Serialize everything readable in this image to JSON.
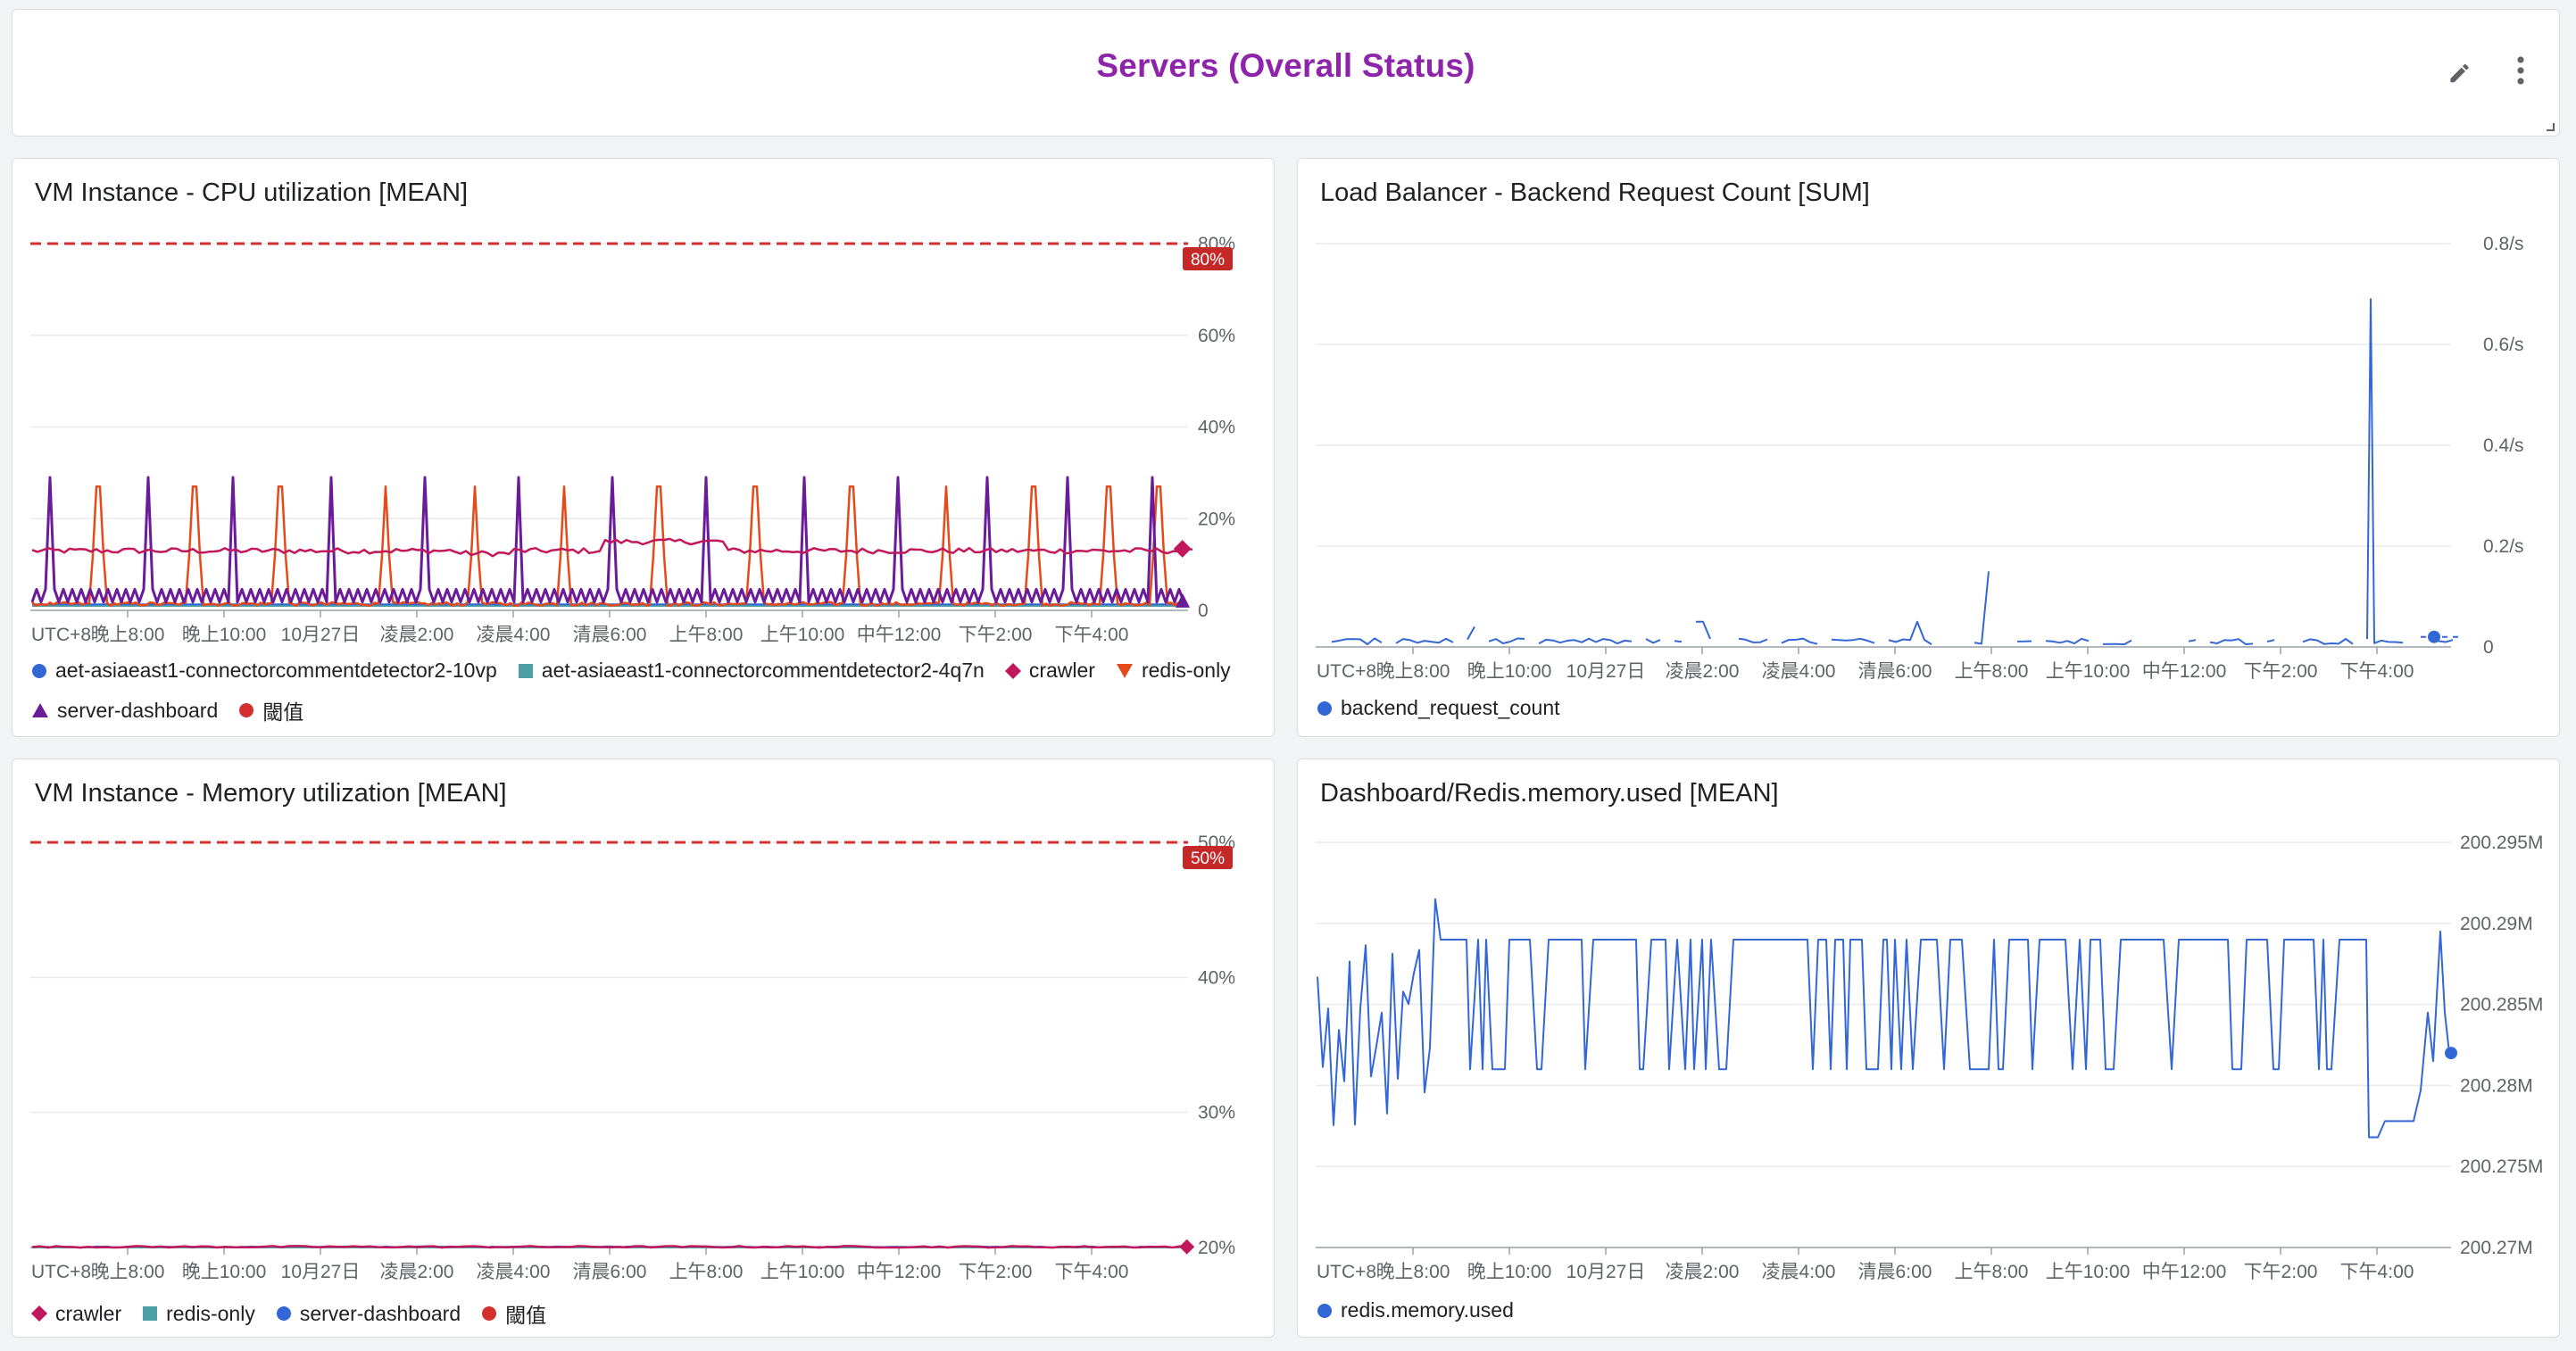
{
  "header": {
    "title": "Servers (Overall Status)",
    "edit_icon": "pencil-icon",
    "more_icon": "more-vert-icon"
  },
  "time_ticks": [
    "UTC+8",
    "晚上8:00",
    "晚上10:00",
    "10月27日",
    "凌晨2:00",
    "凌晨4:00",
    "清晨6:00",
    "上午8:00",
    "上午10:00",
    "中午12:00",
    "下午2:00",
    "下午4:00"
  ],
  "colors": {
    "threshold": "#d32f2f",
    "purple": "#6a1b9a",
    "magenta": "#c2185b",
    "orange": "#e64a19",
    "teal": "#4b9fa5",
    "blue": "#3367d6",
    "title_purple": "#8e24aa"
  },
  "panels": {
    "cpu": {
      "title": "VM Instance - CPU utilization [MEAN]",
      "threshold_badge": "80%",
      "legend": [
        {
          "label": "aet-asiaeast1-connectorcommentdetector2-10vp",
          "marker": "circle",
          "color": "#3367d6"
        },
        {
          "label": "aet-asiaeast1-connectorcommentdetector2-4q7n",
          "marker": "square",
          "color": "#4b9fa5"
        },
        {
          "label": "crawler",
          "marker": "diamond",
          "color": "#c2185b"
        },
        {
          "label": "redis-only",
          "marker": "triangle-down",
          "color": "#e64a19"
        },
        {
          "label": "server-dashboard",
          "marker": "triangle-up",
          "color": "#6a1b9a"
        },
        {
          "label": "閾值",
          "marker": "circle",
          "color": "#d32f2f"
        }
      ]
    },
    "lb": {
      "title": "Load Balancer - Backend Request Count [SUM]",
      "legend": [
        {
          "label": "backend_request_count",
          "marker": "circle",
          "color": "#3367d6"
        }
      ]
    },
    "mem": {
      "title": "VM Instance - Memory utilization [MEAN]",
      "threshold_badge": "50%",
      "legend": [
        {
          "label": "crawler",
          "marker": "diamond",
          "color": "#c2185b"
        },
        {
          "label": "redis-only",
          "marker": "square",
          "color": "#4b9fa5"
        },
        {
          "label": "server-dashboard",
          "marker": "circle",
          "color": "#3367d6"
        },
        {
          "label": "閾值",
          "marker": "circle",
          "color": "#d32f2f"
        }
      ]
    },
    "redis": {
      "title": "Dashboard/Redis.memory.used [MEAN]",
      "legend": [
        {
          "label": "redis.memory.used",
          "marker": "circle",
          "color": "#3367d6"
        }
      ]
    }
  },
  "chart_data": [
    {
      "type": "line",
      "x": [
        "UTC+8",
        "晚上8:00",
        "晚上10:00",
        "10月27日",
        "凌晨2:00",
        "凌晨4:00",
        "清晨6:00",
        "上午8:00",
        "上午10:00",
        "中午12:00",
        "下午2:00",
        "下午4:00"
      ],
      "yticks": [
        "0",
        "20%",
        "40%",
        "60%",
        "80%"
      ],
      "ylim": [
        0,
        80
      ],
      "threshold": 80,
      "series": [
        {
          "name": "crawler",
          "baseline": 13,
          "peak_around": "凌晨4:00-清晨6:00",
          "peak": 16
        },
        {
          "name": "server-dashboard",
          "baseline": 3,
          "spike_values": [
            29,
            29,
            29,
            29,
            29,
            29,
            29,
            29,
            29,
            29,
            29,
            29,
            29,
            29
          ]
        },
        {
          "name": "redis-only",
          "baseline": 1,
          "spike_values": [
            27,
            27,
            27,
            27,
            27,
            27,
            27,
            27,
            27,
            27,
            27,
            27,
            27
          ]
        },
        {
          "name": "aet-asiaeast1-connectorcommentdetector2-10vp",
          "baseline": 1
        },
        {
          "name": "aet-asiaeast1-connectorcommentdetector2-4q7n",
          "baseline": 1
        }
      ]
    },
    {
      "type": "line",
      "x": [
        "UTC+8",
        "晚上8:00",
        "晚上10:00",
        "10月27日",
        "凌晨2:00",
        "凌晨4:00",
        "清晨6:00",
        "上午8:00",
        "上午10:00",
        "中午12:00",
        "下午2:00",
        "下午4:00"
      ],
      "yticks": [
        "0",
        "0.2/s",
        "0.4/s",
        "0.6/s",
        "0.8/s"
      ],
      "ylim": [
        0,
        0.8
      ],
      "series": [
        {
          "name": "backend_request_count",
          "baseline": 0.01,
          "spikes": [
            {
              "at": "清晨6:00",
              "value": 0.05
            },
            {
              "at": "上午8:00",
              "value": 0.15
            },
            {
              "at": "下午4:00",
              "value": 0.69
            }
          ]
        }
      ]
    },
    {
      "type": "line",
      "x": [
        "UTC+8",
        "晚上8:00",
        "晚上10:00",
        "10月27日",
        "凌晨2:00",
        "凌晨4:00",
        "清晨6:00",
        "上午8:00",
        "上午10:00",
        "中午12:00",
        "下午2:00",
        "下午4:00"
      ],
      "yticks": [
        "20%",
        "30%",
        "40%",
        "50%"
      ],
      "ylim": [
        20,
        50
      ],
      "threshold": 50,
      "series": [
        {
          "name": "crawler",
          "baseline": 20
        },
        {
          "name": "redis-only",
          "baseline": 20
        },
        {
          "name": "server-dashboard",
          "baseline": 20
        }
      ]
    },
    {
      "type": "line",
      "x": [
        "UTC+8",
        "晚上8:00",
        "晚上10:00",
        "10月27日",
        "凌晨2:00",
        "凌晨4:00",
        "清晨6:00",
        "上午8:00",
        "上午10:00",
        "中午12:00",
        "下午2:00",
        "下午4:00"
      ],
      "yticks": [
        "200.27M",
        "200.275M",
        "200.28M",
        "200.285M",
        "200.29M",
        "200.295M"
      ],
      "ylim": [
        200.27,
        200.295
      ],
      "series": [
        {
          "name": "redis.memory.used",
          "low": 200.281,
          "high": 200.289,
          "min": 200.2755,
          "max": 200.2915,
          "last": 200.282
        }
      ]
    }
  ]
}
